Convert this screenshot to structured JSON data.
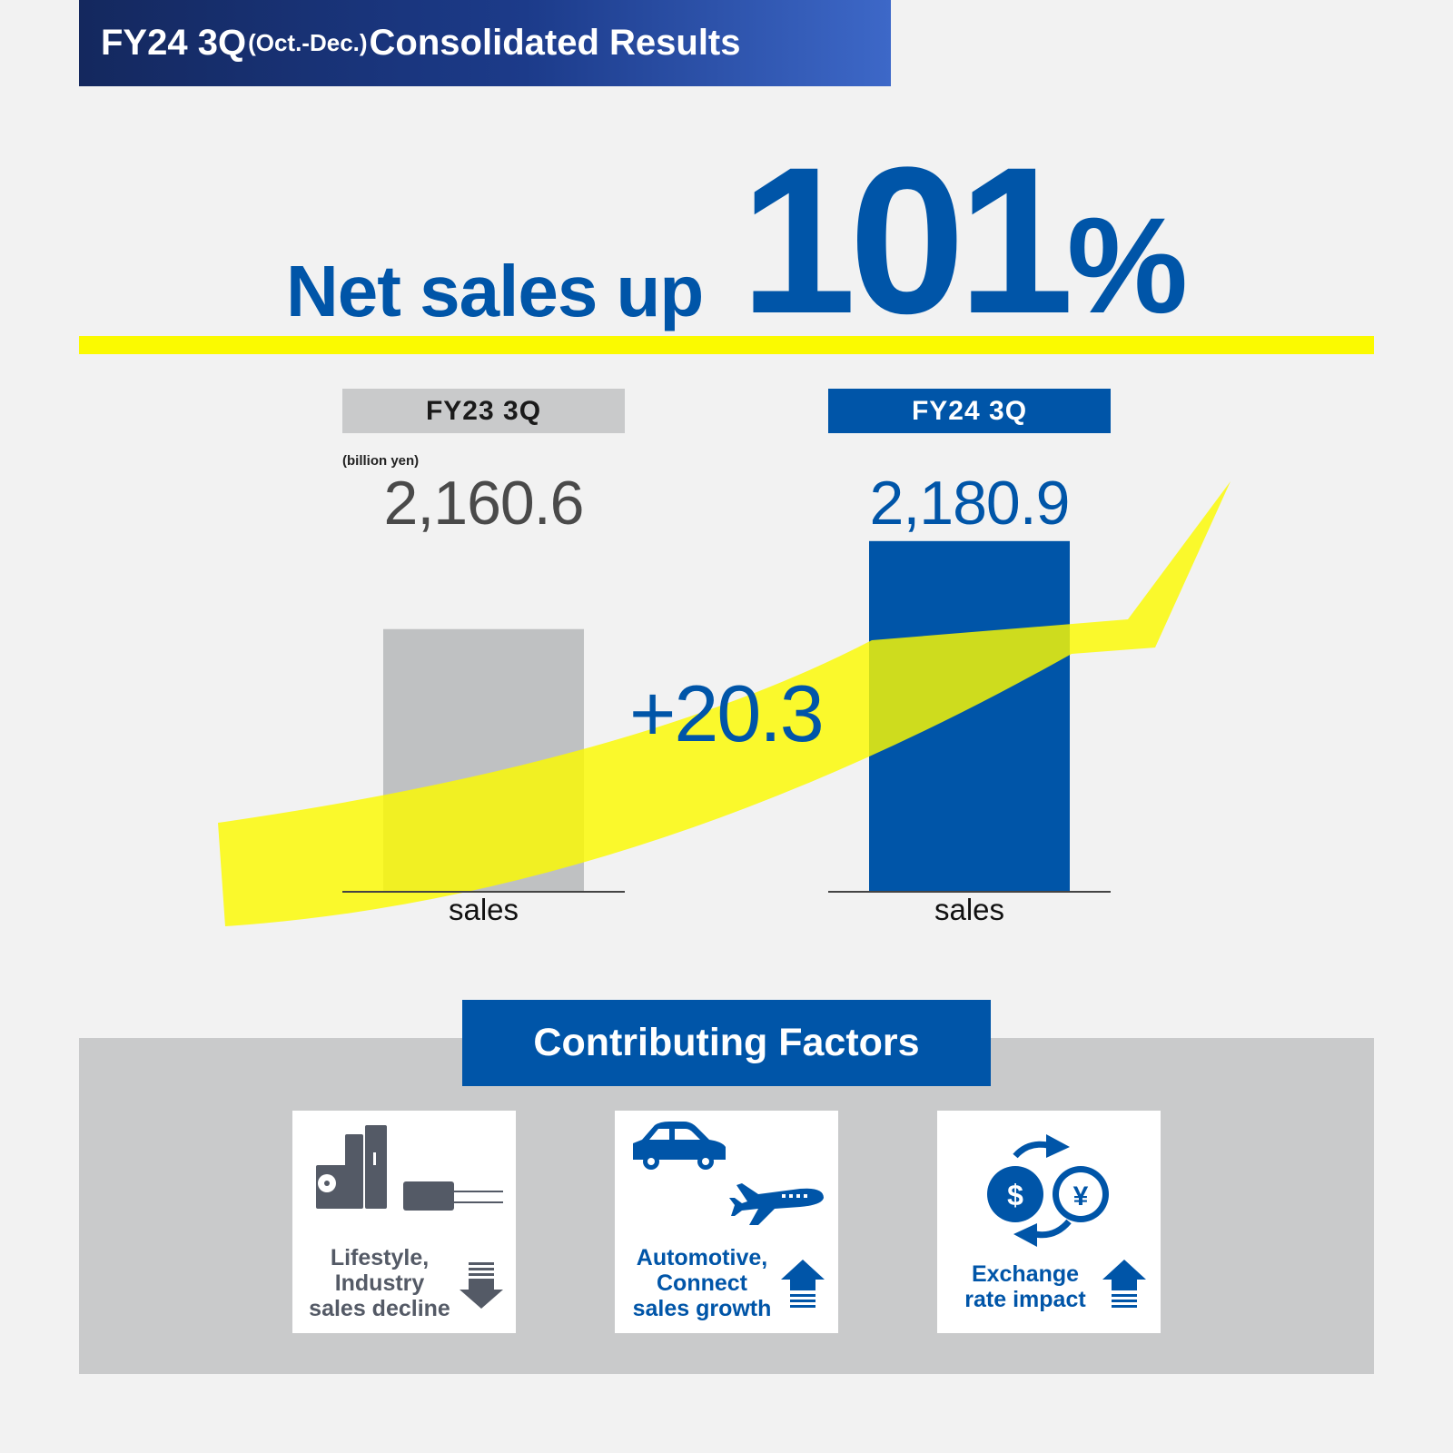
{
  "title": {
    "main_left": "FY24 3Q",
    "period": "(Oct.-Dec.)",
    "main_right": "Consolidated Results"
  },
  "headline": {
    "text": "Net sales up",
    "percent": "101",
    "percent_sign": "%"
  },
  "colors": {
    "primary_blue": "#0055a8",
    "yellow": "#fbfa00",
    "gray_bar": "#bfc1c2",
    "dark_navy": "#14285e"
  },
  "chart_data": {
    "type": "bar",
    "unit": "(billion yen)",
    "categories": [
      "FY23 3Q",
      "FY24 3Q"
    ],
    "values": [
      2160.6,
      2180.9
    ],
    "value_labels": [
      "2,160.6",
      "2,180.9"
    ],
    "axis_labels": [
      "sales",
      "sales"
    ],
    "bar_colors": [
      "#bfc1c2",
      "#0055a8"
    ],
    "difference": "+20.3"
  },
  "factors": {
    "title": "Contributing Factors",
    "items": [
      {
        "lines": [
          "Lifestyle,",
          "Industry",
          "sales decline"
        ],
        "direction": "down",
        "icons": [
          "hvac-unit-icon",
          "capacitor-icon",
          "down-arrow-icon"
        ]
      },
      {
        "lines": [
          "Automotive,",
          "Connect",
          "sales growth"
        ],
        "direction": "up",
        "icons": [
          "car-icon",
          "airplane-icon",
          "up-arrow-icon"
        ]
      },
      {
        "lines": [
          "Exchange",
          "rate impact"
        ],
        "direction": "up",
        "icons": [
          "dollar-icon",
          "yen-icon",
          "exchange-arrows-icon",
          "up-arrow-icon"
        ]
      }
    ],
    "dollar_symbol": "$",
    "yen_symbol": "¥"
  }
}
